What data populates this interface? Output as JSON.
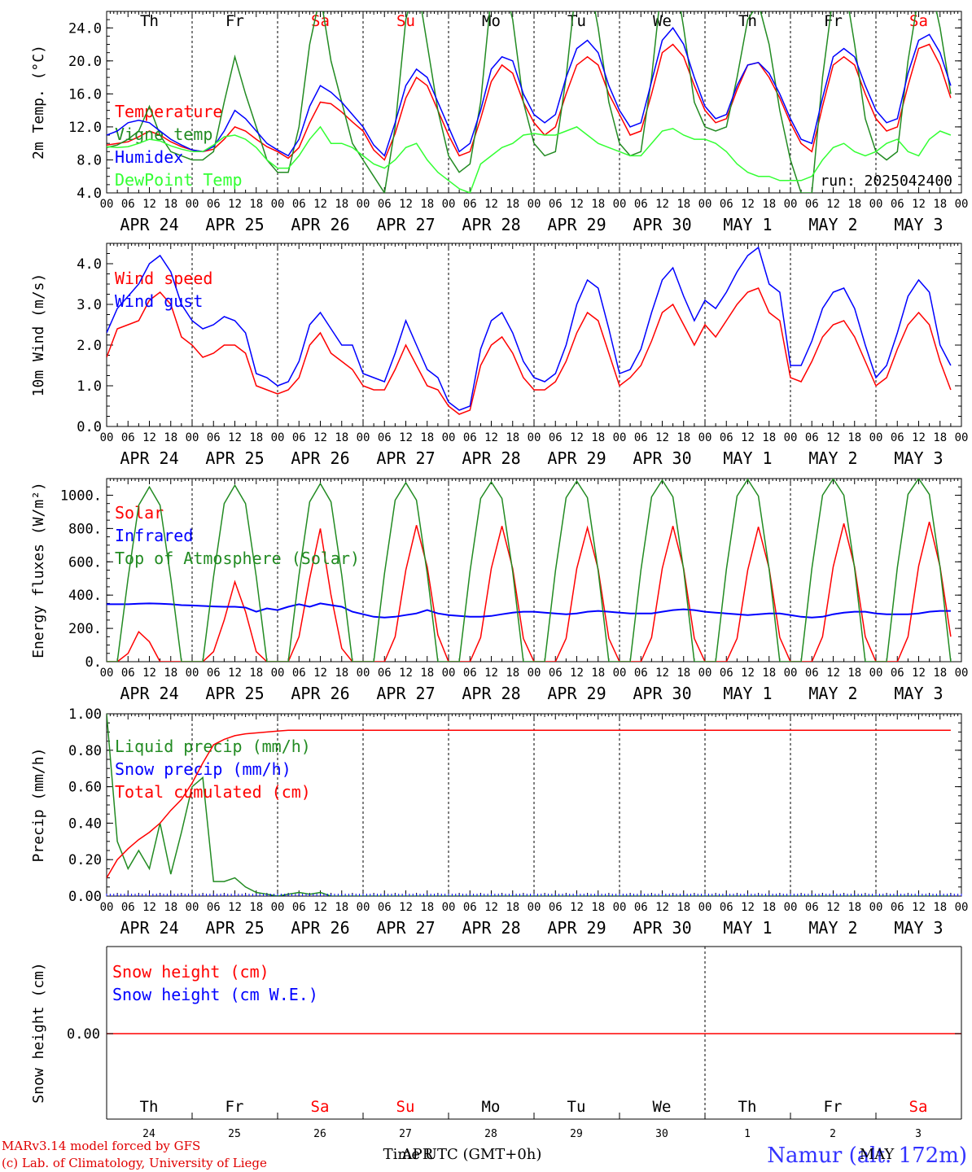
{
  "days": [
    "Th",
    "Fr",
    "Sa",
    "Su",
    "Mo",
    "Tu",
    "We",
    "Th",
    "Fr",
    "Sa"
  ],
  "weekend_days": [
    "Sa",
    "Su"
  ],
  "dates": [
    "APR 24",
    "APR 25",
    "APR 26",
    "APR 27",
    "APR 28",
    "APR 29",
    "APR 30",
    "MAY  1",
    "MAY  2",
    "MAY  3"
  ],
  "hour_ticks": [
    "00",
    "06",
    "12",
    "18"
  ],
  "colors": {
    "red": "#ff0000",
    "green": "#228b22",
    "blue": "#0000ff",
    "lightgreen": "#33ff33",
    "axis": "#000000"
  },
  "chart_data": [
    {
      "type": "line",
      "ylabel": "2m Temp. (°C)",
      "ylim": [
        4,
        26
      ],
      "yticks": [
        "4.0",
        "8.0",
        "12.0",
        "16.0",
        "20.0",
        "24.0"
      ],
      "run_label": "run: 2025042400",
      "x_unit": "hours since APR 24 00 UTC (3-hourly)",
      "series": [
        {
          "name": "Temperature",
          "color": "red",
          "values": [
            9.8,
            10.0,
            10.2,
            10.8,
            11.5,
            11.0,
            10.2,
            9.6,
            9.2,
            9.0,
            9.3,
            10.5,
            12.0,
            11.5,
            10.5,
            9.6,
            9.0,
            8.2,
            9.5,
            12.5,
            15.0,
            14.8,
            13.8,
            12.6,
            11.5,
            9.2,
            8.0,
            11.2,
            15.5,
            18.0,
            17.0,
            14.0,
            11.0,
            8.5,
            9.0,
            13.0,
            17.5,
            19.5,
            18.5,
            15.0,
            12.5,
            11.0,
            12.0,
            16.0,
            19.5,
            20.5,
            19.5,
            16.0,
            13.5,
            11.0,
            11.5,
            16.0,
            21.0,
            22.0,
            20.5,
            17.0,
            14.0,
            12.5,
            13.0,
            16.5,
            19.5,
            19.8,
            18.0,
            15.5,
            12.5,
            10.0,
            9.0,
            14.5,
            19.5,
            20.5,
            19.5,
            16.0,
            13.0,
            11.5,
            12.0,
            17.0,
            21.5,
            22.0,
            19.5,
            15.5
          ]
        },
        {
          "name": "Vigne temp",
          "color": "green",
          "values": [
            9.5,
            9.8,
            10.5,
            11.5,
            14.5,
            11.0,
            9.0,
            8.5,
            8.0,
            8.0,
            9.0,
            15.0,
            20.5,
            16.0,
            12.0,
            8.0,
            6.5,
            6.5,
            12.0,
            22.0,
            28.0,
            20.0,
            15.0,
            10.0,
            8.0,
            6.0,
            4.0,
            12.0,
            25.0,
            30.0,
            22.0,
            14.0,
            8.5,
            6.5,
            7.5,
            15.0,
            28.0,
            30.0,
            25.0,
            15.0,
            10.0,
            8.5,
            9.0,
            18.0,
            30.0,
            31.0,
            24.0,
            15.0,
            10.0,
            8.5,
            9.0,
            18.0,
            30.0,
            32.0,
            24.0,
            15.0,
            12.0,
            11.5,
            12.0,
            18.0,
            25.0,
            27.0,
            22.0,
            14.0,
            8.0,
            4.0,
            4.0,
            18.0,
            28.0,
            30.0,
            22.0,
            13.0,
            9.0,
            8.0,
            9.0,
            20.0,
            28.0,
            30.0,
            24.0,
            16.0
          ]
        },
        {
          "name": "Humidex",
          "color": "blue",
          "values": [
            11.0,
            11.5,
            12.5,
            12.8,
            12.5,
            11.5,
            10.5,
            9.8,
            9.2,
            9.0,
            9.6,
            11.5,
            14.0,
            13.0,
            11.5,
            10.0,
            9.2,
            8.5,
            10.5,
            14.5,
            17.0,
            16.2,
            15.0,
            13.5,
            12.0,
            9.8,
            8.5,
            12.5,
            17.0,
            19.0,
            18.0,
            15.0,
            12.0,
            9.0,
            10.0,
            14.0,
            19.0,
            20.5,
            20.0,
            16.0,
            13.5,
            12.5,
            13.5,
            18.0,
            21.5,
            22.5,
            21.0,
            17.0,
            14.0,
            12.0,
            12.5,
            17.5,
            22.5,
            24.0,
            22.0,
            18.0,
            14.5,
            13.0,
            13.5,
            17.0,
            19.5,
            19.8,
            18.5,
            16.0,
            13.0,
            10.5,
            10.0,
            15.5,
            20.5,
            21.5,
            20.5,
            17.0,
            14.0,
            12.5,
            13.0,
            18.5,
            22.5,
            23.2,
            21.0,
            17.0
          ]
        },
        {
          "name": "DewPoint Temp",
          "color": "lightgreen",
          "values": [
            9.6,
            9.5,
            9.6,
            10.0,
            10.5,
            10.3,
            9.7,
            9.3,
            9.0,
            9.0,
            9.8,
            10.8,
            11.0,
            10.5,
            9.5,
            8.0,
            7.0,
            7.0,
            8.5,
            10.5,
            12.0,
            10.0,
            10.0,
            9.5,
            8.5,
            7.5,
            7.0,
            8.0,
            9.5,
            10.0,
            8.0,
            6.5,
            5.5,
            4.5,
            4.0,
            7.5,
            8.5,
            9.5,
            10.0,
            11.0,
            11.2,
            11.0,
            11.0,
            11.5,
            12.0,
            11.0,
            10.0,
            9.5,
            9.0,
            8.5,
            8.5,
            10.0,
            11.5,
            11.8,
            11.0,
            10.5,
            10.5,
            10.0,
            9.0,
            7.5,
            6.5,
            6.0,
            6.0,
            5.5,
            5.5,
            5.5,
            6.0,
            8.0,
            9.5,
            10.0,
            9.0,
            8.5,
            9.0,
            10.0,
            10.5,
            9.0,
            8.5,
            10.5,
            11.5,
            11.0
          ]
        }
      ]
    },
    {
      "type": "line",
      "ylabel": "10m Wind (m/s)",
      "ylim": [
        0,
        4.5
      ],
      "yticks": [
        "0.0",
        "1.0",
        "2.0",
        "3.0",
        "4.0"
      ],
      "series": [
        {
          "name": "Wind speed",
          "color": "red",
          "values": [
            1.7,
            2.4,
            2.5,
            2.6,
            3.1,
            3.3,
            3.0,
            2.2,
            2.0,
            1.7,
            1.8,
            2.0,
            2.0,
            1.8,
            1.0,
            0.9,
            0.8,
            0.9,
            1.2,
            2.0,
            2.3,
            1.8,
            1.6,
            1.4,
            1.0,
            0.9,
            0.9,
            1.4,
            2.0,
            1.5,
            1.0,
            0.9,
            0.5,
            0.3,
            0.4,
            1.5,
            2.0,
            2.2,
            1.8,
            1.2,
            0.9,
            0.9,
            1.1,
            1.6,
            2.3,
            2.8,
            2.6,
            1.8,
            1.0,
            1.2,
            1.5,
            2.1,
            2.8,
            3.0,
            2.5,
            2.0,
            2.5,
            2.2,
            2.6,
            3.0,
            3.3,
            3.4,
            2.8,
            2.6,
            1.2,
            1.1,
            1.6,
            2.2,
            2.5,
            2.6,
            2.2,
            1.6,
            1.0,
            1.2,
            1.9,
            2.5,
            2.8,
            2.5,
            1.6,
            0.9
          ]
        },
        {
          "name": "Wind gust",
          "color": "blue",
          "values": [
            2.3,
            2.9,
            3.2,
            3.5,
            4.0,
            4.2,
            3.8,
            3.0,
            2.6,
            2.4,
            2.5,
            2.7,
            2.6,
            2.3,
            1.3,
            1.2,
            1.0,
            1.1,
            1.6,
            2.5,
            2.8,
            2.4,
            2.0,
            2.0,
            1.3,
            1.2,
            1.1,
            1.8,
            2.6,
            2.0,
            1.4,
            1.2,
            0.6,
            0.4,
            0.5,
            1.9,
            2.6,
            2.8,
            2.3,
            1.6,
            1.2,
            1.1,
            1.3,
            2.0,
            3.0,
            3.6,
            3.4,
            2.4,
            1.3,
            1.4,
            1.9,
            2.8,
            3.6,
            3.9,
            3.2,
            2.6,
            3.1,
            2.9,
            3.3,
            3.8,
            4.2,
            4.4,
            3.5,
            3.3,
            1.5,
            1.5,
            2.1,
            2.9,
            3.3,
            3.4,
            2.9,
            2.0,
            1.2,
            1.5,
            2.3,
            3.2,
            3.6,
            3.3,
            2.0,
            1.5
          ]
        }
      ]
    },
    {
      "type": "line",
      "ylabel": "Energy fluxes (W/m²)",
      "ylim": [
        0,
        1100
      ],
      "yticks": [
        "0.",
        "200.",
        "400.",
        "600.",
        "800.",
        "1000."
      ],
      "series": [
        {
          "name": "Solar",
          "color": "red",
          "values": [
            0,
            0,
            50,
            180,
            120,
            0,
            0,
            0,
            0,
            0,
            60,
            250,
            480,
            300,
            60,
            0,
            0,
            0,
            150,
            500,
            800,
            400,
            80,
            0,
            0,
            0,
            0,
            150,
            550,
            820,
            570,
            160,
            0,
            0,
            0,
            145,
            560,
            815,
            560,
            140,
            0,
            0,
            0,
            140,
            560,
            805,
            555,
            140,
            0,
            0,
            0,
            145,
            560,
            815,
            560,
            140,
            0,
            0,
            0,
            140,
            550,
            810,
            560,
            145,
            0,
            0,
            0,
            150,
            570,
            830,
            570,
            150,
            0,
            0,
            0,
            150,
            575,
            840,
            570,
            150
          ]
        },
        {
          "name": "Infrared",
          "color": "blue",
          "values": [
            345,
            345,
            345,
            348,
            350,
            348,
            345,
            340,
            338,
            335,
            332,
            330,
            330,
            325,
            300,
            320,
            310,
            330,
            345,
            330,
            350,
            340,
            330,
            300,
            285,
            270,
            265,
            270,
            280,
            290,
            310,
            290,
            280,
            275,
            270,
            270,
            275,
            285,
            295,
            300,
            300,
            295,
            290,
            285,
            290,
            300,
            305,
            300,
            295,
            290,
            290,
            290,
            300,
            310,
            315,
            310,
            300,
            295,
            290,
            285,
            280,
            285,
            290,
            290,
            280,
            270,
            265,
            270,
            285,
            295,
            300,
            300,
            290,
            285,
            285,
            285,
            290,
            300,
            305,
            305
          ]
        },
        {
          "name": "Top of Atmosphere (Solar)",
          "color": "green",
          "values": [
            0,
            0,
            500,
            940,
            1050,
            940,
            500,
            0,
            0,
            0,
            510,
            950,
            1060,
            950,
            510,
            0,
            0,
            0,
            520,
            960,
            1070,
            960,
            520,
            0,
            0,
            0,
            530,
            970,
            1075,
            970,
            530,
            0,
            0,
            0,
            540,
            980,
            1080,
            980,
            540,
            0,
            0,
            0,
            545,
            985,
            1085,
            985,
            545,
            0,
            0,
            0,
            550,
            990,
            1090,
            990,
            550,
            0,
            0,
            0,
            555,
            995,
            1095,
            995,
            555,
            0,
            0,
            0,
            560,
            1000,
            1098,
            1000,
            560,
            0,
            0,
            0,
            565,
            1005,
            1100,
            1005,
            565,
            0
          ]
        }
      ]
    },
    {
      "type": "line",
      "ylabel": "Precip (mm/h)",
      "ylim": [
        0,
        1
      ],
      "yticks": [
        "0.00",
        "0.20",
        "0.40",
        "0.60",
        "0.80",
        "1.00"
      ],
      "series": [
        {
          "name": "Liquid precip (mm/h)",
          "color": "green",
          "values": [
            1.0,
            0.3,
            0.15,
            0.25,
            0.15,
            0.4,
            0.12,
            0.35,
            0.6,
            0.65,
            0.08,
            0.08,
            0.1,
            0.05,
            0.02,
            0.01,
            0,
            0.01,
            0.02,
            0.01,
            0.02,
            0,
            0,
            0,
            0,
            0,
            0,
            0,
            0,
            0,
            0,
            0,
            0,
            0,
            0,
            0,
            0,
            0,
            0,
            0,
            0,
            0,
            0,
            0,
            0,
            0,
            0,
            0,
            0,
            0,
            0,
            0,
            0,
            0,
            0,
            0,
            0,
            0,
            0,
            0,
            0,
            0,
            0,
            0,
            0,
            0,
            0,
            0,
            0,
            0,
            0,
            0,
            0,
            0,
            0,
            0,
            0,
            0,
            0,
            0
          ]
        },
        {
          "name": "Snow precip (mm/h)",
          "color": "blue",
          "values": []
        },
        {
          "name": "Total cumulated (cm)",
          "color": "red",
          "values": [
            0.1,
            0.2,
            0.26,
            0.31,
            0.35,
            0.4,
            0.47,
            0.53,
            0.62,
            0.73,
            0.83,
            0.86,
            0.88,
            0.89,
            0.895,
            0.9,
            0.905,
            0.91,
            0.91,
            0.91,
            0.91,
            0.91,
            0.91,
            0.91,
            0.91,
            0.91,
            0.91,
            0.91,
            0.91,
            0.91,
            0.91,
            0.91,
            0.91,
            0.91,
            0.91,
            0.91,
            0.91,
            0.91,
            0.91,
            0.91,
            0.91,
            0.91,
            0.91,
            0.91,
            0.91,
            0.91,
            0.91,
            0.91,
            0.91,
            0.91,
            0.91,
            0.91,
            0.91,
            0.91,
            0.91,
            0.91,
            0.91,
            0.91,
            0.91,
            0.91,
            0.91,
            0.91,
            0.91,
            0.91,
            0.91,
            0.91,
            0.91,
            0.91,
            0.91,
            0.91,
            0.91,
            0.91,
            0.91,
            0.91,
            0.91,
            0.91,
            0.91,
            0.91,
            0.91,
            0.91
          ]
        }
      ]
    },
    {
      "type": "line",
      "ylabel": "Snow height (cm)",
      "yticks": [
        "0.00"
      ],
      "series": [
        {
          "name": "Snow height (cm)",
          "color": "red",
          "values": [
            0,
            0
          ]
        },
        {
          "name": "Snow height (cm W.E.)",
          "color": "blue",
          "values": []
        }
      ],
      "day_numbers": [
        "24",
        "25",
        "26",
        "27",
        "28",
        "29",
        "30",
        "1",
        "2",
        "3"
      ],
      "month_labels": [
        "APR",
        "MAY"
      ],
      "xlabel": "Time UTC (GMT+0h)"
    }
  ],
  "footer": {
    "line1": "MARv3.14 model forced by GFS",
    "line2": "(c) Lab. of Climatology, University of Liege",
    "station": "Namur (alt. 172m)"
  }
}
